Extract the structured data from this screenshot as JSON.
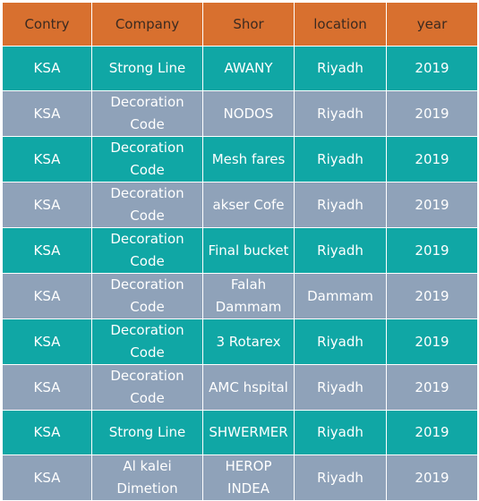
{
  "table": {
    "headers": [
      "Contry",
      "Company",
      "Shor",
      "location",
      "year"
    ],
    "rows": [
      [
        "KSA",
        "Strong Line",
        "AWANY",
        "Riyadh",
        "2019"
      ],
      [
        "KSA",
        "Decoration Code",
        "NODOS",
        "Riyadh",
        "2019"
      ],
      [
        "KSA",
        "Decoration Code",
        "Mesh fares",
        "Riyadh",
        "2019"
      ],
      [
        "KSA",
        "Decoration Code",
        "akser Cofe",
        "Riyadh",
        "2019"
      ],
      [
        "KSA",
        "Decoration Code",
        "Final bucket",
        "Riyadh",
        "2019"
      ],
      [
        "KSA",
        "Decoration Code",
        "Falah Dammam",
        "Dammam",
        "2019"
      ],
      [
        "KSA",
        "Decoration Code",
        "3 Rotarex",
        "Riyadh",
        "2019"
      ],
      [
        "KSA",
        "Decoration Code",
        "AMC hspital",
        "Riyadh",
        "2019"
      ],
      [
        "KSA",
        "Strong Line",
        "SHWERMER",
        "Riyadh",
        "2019"
      ],
      [
        "KSA",
        "Al kalei Dimetion",
        "HEROP INDEA",
        "Riyadh",
        "2019"
      ]
    ]
  },
  "colors": {
    "header": "#d8702f",
    "row_teal": "#10a7a5",
    "row_slate": "#8fa2b9"
  }
}
